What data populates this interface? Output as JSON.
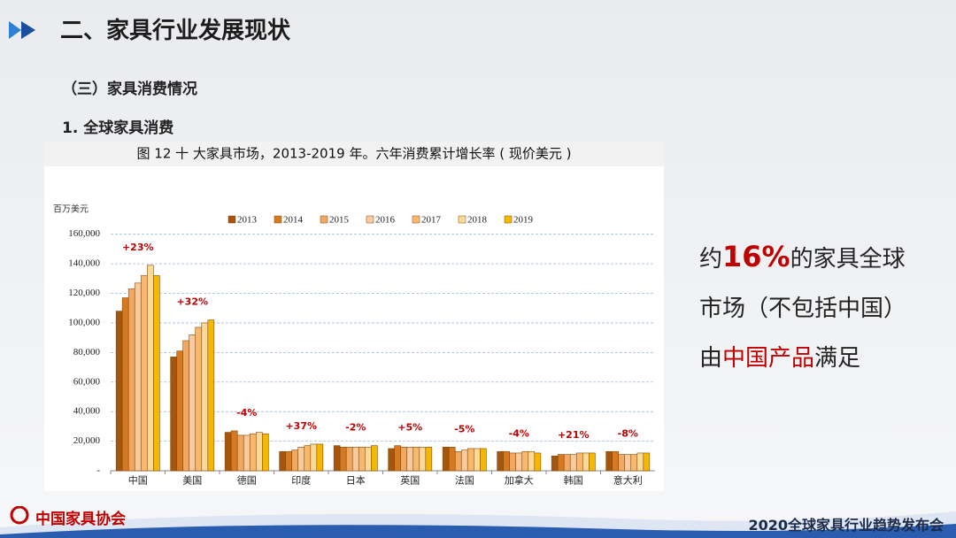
{
  "header": {
    "title": "二、家具行业发展现状",
    "section": "（三）家具消费情况",
    "subsection": "1. 全球家具消费"
  },
  "chart_data": {
    "type": "bar",
    "title": "图 12  十 大家具市场，2013-2019 年。六年消费累计增长率 ( 现价美元 )",
    "y_unit": "百万美元",
    "categories": [
      "中国",
      "美国",
      "德国",
      "印度",
      "日本",
      "英国",
      "法国",
      "加拿大",
      "韩国",
      "意大利"
    ],
    "annotations": [
      "+23%",
      "+32%",
      "-4%",
      "+37%",
      "-2%",
      "+5%",
      "-5%",
      "-4%",
      "+21%",
      "-8%"
    ],
    "series": [
      {
        "name": "2013",
        "color": "#a3560f",
        "values": [
          108000,
          77000,
          26000,
          13000,
          17000,
          15000,
          16000,
          13000,
          10000,
          13000
        ]
      },
      {
        "name": "2014",
        "color": "#d57a22",
        "values": [
          117000,
          81000,
          27000,
          13000,
          16000,
          17000,
          16000,
          13000,
          11000,
          13000
        ]
      },
      {
        "name": "2015",
        "color": "#f0a862",
        "values": [
          123000,
          88000,
          24000,
          14000,
          16000,
          16000,
          13000,
          12000,
          11000,
          11000
        ]
      },
      {
        "name": "2016",
        "color": "#f7caa0",
        "values": [
          127000,
          92000,
          24000,
          16000,
          16000,
          16000,
          14000,
          12000,
          11000,
          11000
        ]
      },
      {
        "name": "2017",
        "color": "#f7b96e",
        "values": [
          132000,
          97000,
          25000,
          17000,
          16000,
          16000,
          15000,
          13000,
          12000,
          11000
        ]
      },
      {
        "name": "2018",
        "color": "#fad99a",
        "values": [
          139000,
          100000,
          26000,
          18000,
          16000,
          16000,
          15000,
          13000,
          12000,
          12000
        ]
      },
      {
        "name": "2019",
        "color": "#f5b800",
        "values": [
          132000,
          102000,
          25000,
          18000,
          17000,
          16000,
          15000,
          12000,
          12000,
          12000
        ]
      }
    ],
    "ylim": [
      0,
      170000
    ],
    "yticks": [
      {
        "value": 0,
        "label": "-"
      },
      {
        "value": 20000,
        "label": "20,000"
      },
      {
        "value": 40000,
        "label": "40,000"
      },
      {
        "value": 60000,
        "label": "60,000"
      },
      {
        "value": 80000,
        "label": "80,000"
      },
      {
        "value": 100000,
        "label": "100,000"
      },
      {
        "value": 120000,
        "label": "120,000"
      },
      {
        "value": 140000,
        "label": "140,000"
      },
      {
        "value": 160000,
        "label": "160,000"
      }
    ],
    "grid": true
  },
  "callout": {
    "parts": [
      "约",
      "16%",
      "的家具全球",
      "市场（不包括中国）",
      "由",
      "中国产品",
      "满足"
    ]
  },
  "footer": {
    "logo": "中国家具协会",
    "event": "2020全球家具行业趋势发布会"
  }
}
